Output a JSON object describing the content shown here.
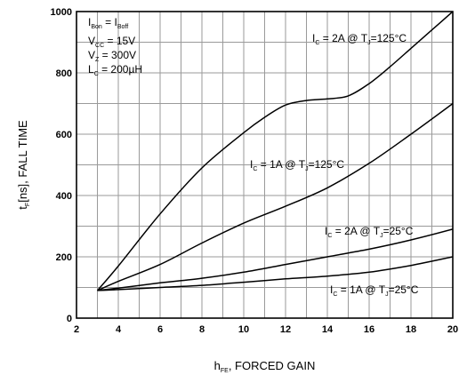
{
  "chart_data": {
    "type": "line",
    "xlabel": {
      "base": "h",
      "sub": "FE",
      "rest": ", FORCED GAIN"
    },
    "ylabel": {
      "base": "t",
      "sub": "F",
      "rest": "[ns], FALL TIME"
    },
    "xlim": [
      2,
      20
    ],
    "ylim": [
      0,
      1000
    ],
    "xticks": [
      2,
      4,
      6,
      8,
      10,
      12,
      14,
      16,
      18,
      20
    ],
    "yticks": [
      0,
      200,
      400,
      600,
      800,
      1000
    ],
    "x_minor_step": 1,
    "y_minor_step": 100,
    "grid": true,
    "conditions": [
      {
        "base": "I",
        "sub": "Bon",
        "rest": " = I",
        "sub2": "Boff"
      },
      {
        "base": "V",
        "sub": "CC",
        "rest": " = 15V"
      },
      {
        "base": "V",
        "sub": "Z",
        "rest": " = 300V"
      },
      {
        "base": "L",
        "sub": "C",
        "rest": " = 200µH"
      }
    ],
    "series": [
      {
        "label": {
          "base": "I",
          "sub": "C",
          "mid": " = 2A @ T",
          "sub2": "J",
          "rest": "=125°C"
        },
        "x": [
          3,
          4,
          6,
          8,
          10,
          11,
          12,
          13,
          14,
          15,
          16,
          17,
          18,
          19,
          20
        ],
        "y": [
          90,
          170,
          340,
          490,
          605,
          655,
          695,
          710,
          715,
          725,
          765,
          820,
          880,
          940,
          1000
        ]
      },
      {
        "label": {
          "base": "I",
          "sub": "C",
          "mid": " = 1A @ T",
          "sub2": "J",
          "rest": "=125°C"
        },
        "x": [
          3,
          4,
          6,
          8,
          10,
          12,
          14,
          16,
          18,
          20
        ],
        "y": [
          90,
          120,
          175,
          245,
          310,
          365,
          425,
          505,
          600,
          700
        ]
      },
      {
        "label": {
          "base": "I",
          "sub": "C",
          "mid": " = 2A @ T",
          "sub2": "J",
          "rest": "=25°C"
        },
        "x": [
          3,
          4,
          6,
          8,
          10,
          12,
          14,
          16,
          18,
          20
        ],
        "y": [
          90,
          98,
          115,
          130,
          150,
          175,
          200,
          225,
          255,
          290
        ]
      },
      {
        "label": {
          "base": "I",
          "sub": "C",
          "mid": " = 1A @ T",
          "sub2": "J",
          "rest": "=25°C"
        },
        "x": [
          3,
          4,
          6,
          8,
          10,
          12,
          14,
          16,
          18,
          20
        ],
        "y": [
          90,
          93,
          100,
          107,
          117,
          128,
          137,
          150,
          172,
          200
        ]
      }
    ]
  }
}
